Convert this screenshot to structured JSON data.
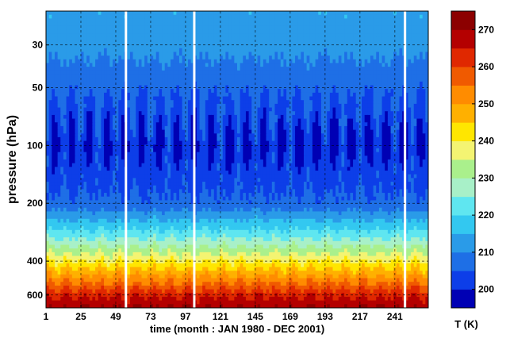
{
  "chart_data": {
    "type": "heatmap",
    "xlabel": "time (month : JAN 1980 - DEC 2001)",
    "ylabel": "pressure (hPa)",
    "x_ticks": [
      1,
      25,
      49,
      73,
      97,
      121,
      145,
      169,
      193,
      217,
      241
    ],
    "x_range": [
      1,
      264
    ],
    "y_ticks": [
      30,
      50,
      100,
      200,
      400,
      600
    ],
    "y_range": [
      20,
      700
    ],
    "y_scale": "log",
    "grid": true,
    "colorbar": {
      "label": "T (K)",
      "ticks": [
        200,
        210,
        220,
        230,
        240,
        250,
        260,
        270
      ],
      "levels": [
        195,
        200,
        205,
        210,
        215,
        220,
        225,
        230,
        235,
        240,
        245,
        250,
        255,
        260,
        265,
        270,
        275
      ],
      "colors": [
        "#0000b4",
        "#0d3ee8",
        "#1e6fe6",
        "#2a9be8",
        "#33c8f0",
        "#5fe6f0",
        "#a8f0c8",
        "#aaf08c",
        "#f4f472",
        "#ffe600",
        "#ffb000",
        "#ff8c00",
        "#f05a00",
        "#e02800",
        "#b40000",
        "#8c0000"
      ]
    },
    "profile": {
      "description_levels_hPa": [
        20,
        30,
        50,
        100,
        200,
        300,
        400,
        500,
        600,
        700
      ],
      "temperature_K": [
        214,
        212,
        206,
        200,
        206,
        224,
        240,
        253,
        264,
        270
      ]
    },
    "vertical_gaps_month": [
      56,
      103,
      248
    ]
  },
  "colors": {
    "gap": "#ffffff",
    "grid": "#000000",
    "frame": "#000000"
  }
}
